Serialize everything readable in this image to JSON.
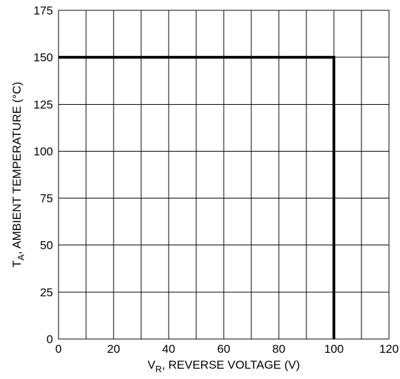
{
  "chart_data": {
    "type": "line",
    "x_axis": {
      "label_main": "V",
      "label_sub": "R",
      "label_rest": ", REVERSE VOLTAGE (V)",
      "range": [
        0,
        120
      ],
      "ticks": [
        0,
        20,
        40,
        60,
        80,
        100,
        120
      ],
      "grid_step": 10
    },
    "y_axis": {
      "label_main": "T",
      "label_sub": "A",
      "label_rest": ", AMBIENT TEMPERATURE (°C)",
      "range": [
        0,
        175
      ],
      "ticks": [
        0,
        25,
        50,
        75,
        100,
        125,
        150,
        175
      ],
      "grid_step": 25
    },
    "grid": true,
    "series": [
      {
        "x": [
          0,
          100,
          100
        ],
        "y": [
          150,
          150,
          0
        ]
      }
    ]
  }
}
